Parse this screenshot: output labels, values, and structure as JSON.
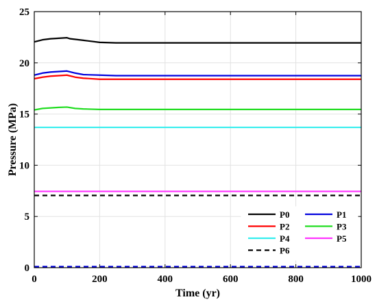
{
  "chart_data": {
    "type": "line",
    "title": "",
    "xlabel": "Time (yr)",
    "ylabel": "Pressure (MPa)",
    "xlim": [
      0,
      1000
    ],
    "ylim": [
      0,
      25
    ],
    "xticks": [
      0,
      200,
      400,
      600,
      800,
      1000
    ],
    "yticks": [
      0,
      5,
      10,
      15,
      20,
      25
    ],
    "grid": true,
    "legend_position": "bottom-right",
    "legend_columns": 2,
    "series": [
      {
        "name": "P0",
        "color": "#000000",
        "dash": "solid",
        "x": [
          0,
          25,
          50,
          75,
          100,
          110,
          150,
          200,
          250,
          1000
        ],
        "y": [
          22.05,
          22.25,
          22.35,
          22.4,
          22.45,
          22.35,
          22.2,
          22.0,
          21.95,
          21.95
        ]
      },
      {
        "name": "P1",
        "color": "#0000dd",
        "dash": "solid",
        "x": [
          0,
          25,
          50,
          75,
          100,
          125,
          150,
          200,
          250,
          1000
        ],
        "y": [
          18.8,
          19.0,
          19.1,
          19.15,
          19.2,
          19.0,
          18.85,
          18.8,
          18.75,
          18.75
        ]
      },
      {
        "name": "P2",
        "color": "#ff0000",
        "dash": "solid",
        "x": [
          0,
          25,
          50,
          75,
          100,
          125,
          150,
          200,
          250,
          1000
        ],
        "y": [
          18.45,
          18.6,
          18.7,
          18.75,
          18.8,
          18.6,
          18.5,
          18.4,
          18.4,
          18.4
        ]
      },
      {
        "name": "P3",
        "color": "#22dd22",
        "dash": "solid",
        "x": [
          0,
          25,
          50,
          75,
          100,
          125,
          150,
          200,
          250,
          1000
        ],
        "y": [
          15.4,
          15.55,
          15.6,
          15.65,
          15.68,
          15.55,
          15.5,
          15.45,
          15.45,
          15.45
        ]
      },
      {
        "name": "P4",
        "color": "#33eeee",
        "dash": "solid",
        "x": [
          0,
          1000
        ],
        "y": [
          13.7,
          13.7
        ]
      },
      {
        "name": "P5",
        "color": "#ff33ff",
        "dash": "solid",
        "x": [
          0,
          1000
        ],
        "y": [
          7.45,
          7.45
        ]
      },
      {
        "name": "P6",
        "color": "#000000",
        "dash": "dashed",
        "x": [
          0,
          1000
        ],
        "y": [
          7.05,
          7.05
        ]
      },
      {
        "name": "",
        "color": "#0000dd",
        "dash": "dashed",
        "x": [
          0,
          1000
        ],
        "y": [
          0.1,
          0.1
        ]
      }
    ]
  }
}
